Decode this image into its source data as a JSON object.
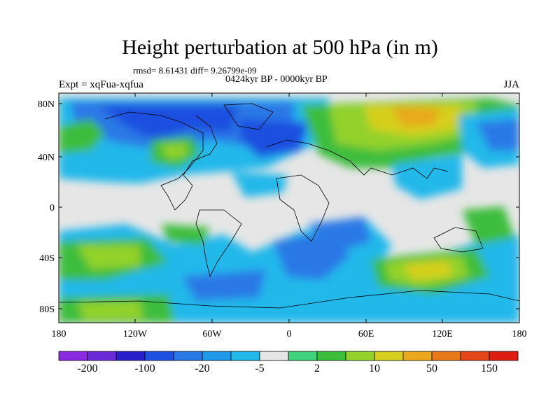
{
  "title": "Height perturbation at 500 hPa (in m)",
  "stats": "rmsd= 8.61431 diff= 9.26799e-09",
  "period": "0424kyr BP - 0000kyr BP",
  "experiment": "Expt = xqFua-xqfua",
  "season": "JJA",
  "lat_ticks": [
    "80N",
    "40N",
    "0",
    "40S",
    "80S"
  ],
  "lon_ticks": [
    "180",
    "120W",
    "60W",
    "0",
    "60E",
    "120E",
    "180"
  ],
  "colorbar": {
    "colors": [
      "#8a2be2",
      "#6a2ad8",
      "#2a1fc8",
      "#1f4fe0",
      "#2a78e6",
      "#1f98e8",
      "#22b8ea",
      "#e6e6e6",
      "#3fd17c",
      "#3cbd3c",
      "#93d22b",
      "#d6cf1f",
      "#e9a81d",
      "#e8791b",
      "#e4471a",
      "#dd1d14"
    ],
    "labels": [
      "-200",
      "-100",
      "-20",
      "-5",
      "2",
      "10",
      "50",
      "150"
    ]
  }
}
